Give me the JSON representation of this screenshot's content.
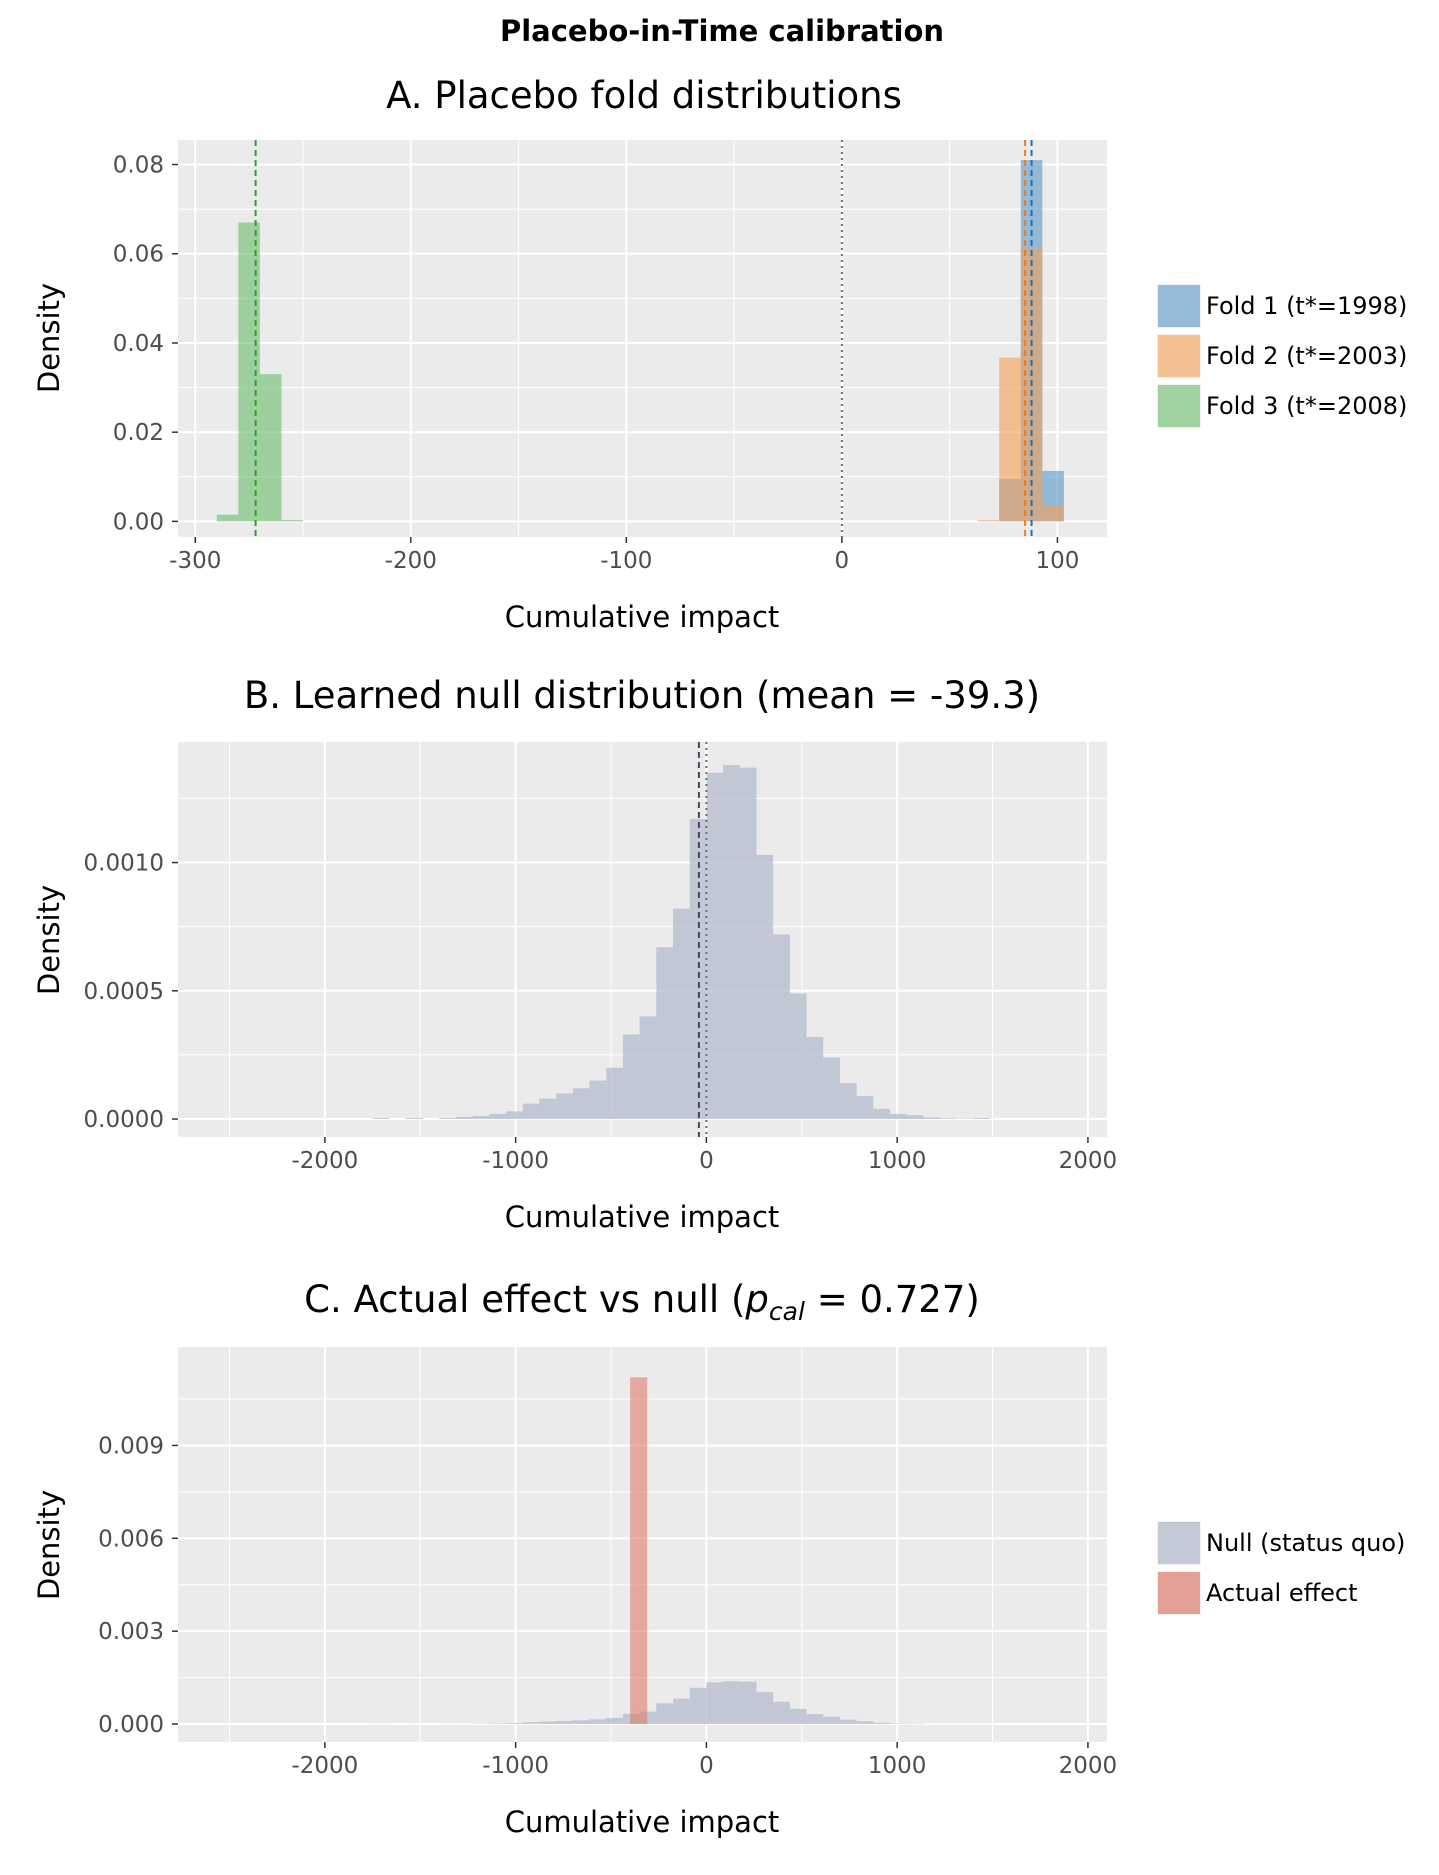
{
  "figure_title": "Placebo-in-Time calibration",
  "chart_data": [
    {
      "id": "A",
      "type": "histogram",
      "title": "A. Placebo fold distributions",
      "xlabel": "Cumulative impact",
      "ylabel": "Density",
      "xlim": [
        -308,
        123
      ],
      "ylim": [
        -0.0035,
        0.0855
      ],
      "x_ticks": [
        -300,
        -200,
        -100,
        0,
        100
      ],
      "y_ticks": [
        0.0,
        0.02,
        0.04,
        0.06,
        0.08
      ],
      "y_tick_labels": [
        "0.00",
        "0.02",
        "0.04",
        "0.06",
        "0.08"
      ],
      "grid": true,
      "legend_position": "right",
      "legend": [
        "Fold 1 (t*=1998)",
        "Fold 2 (t*=2003)",
        "Fold 3 (t*=2008)"
      ],
      "series": [
        {
          "name": "Fold 1 (t*=1998)",
          "color": "#5b9acb",
          "bins": [
            [
              73,
              83,
              0.0095
            ],
            [
              83,
              93,
              0.081
            ],
            [
              93,
              103,
              0.0113
            ]
          ],
          "vline": 88
        },
        {
          "name": "Fold 2 (t*=2003)",
          "color": "#f4a15a",
          "bins": [
            [
              63,
              73,
              0.0003
            ],
            [
              73,
              83,
              0.0367
            ],
            [
              83,
              93,
              0.0612
            ],
            [
              93,
              103,
              0.0035
            ]
          ],
          "vline": 85
        },
        {
          "name": "Fold 3 (t*=2008)",
          "color": "#6cbe6c",
          "bins": [
            [
              -290,
              -280,
              0.0015
            ],
            [
              -280,
              -270,
              0.067
            ],
            [
              -270,
              -260,
              0.033
            ],
            [
              -260,
              -250,
              0.0003
            ]
          ],
          "vline": -272
        }
      ],
      "reference_line": 0
    },
    {
      "id": "B",
      "type": "histogram",
      "title": "B. Learned null distribution (mean = -39.3)",
      "xlabel": "Cumulative impact",
      "ylabel": "Density",
      "xlim": [
        -2770,
        2100
      ],
      "ylim": [
        -7e-05,
        0.00147
      ],
      "x_ticks": [
        -2000,
        -1000,
        0,
        1000,
        2000
      ],
      "y_ticks": [
        0.0,
        0.0005,
        0.001
      ],
      "y_tick_labels": [
        "0.0000",
        "0.0005",
        "0.0010"
      ],
      "grid": true,
      "color": "#b0b9cb",
      "bin_start": -1750,
      "bin_width": 87.5,
      "values": [
        4e-06,
        0.0,
        4e-06,
        0.0,
        4e-06,
        8e-06,
        1.2e-05,
        2e-05,
        3e-05,
        6e-05,
        8e-05,
        0.0001,
        0.00012,
        0.00015,
        0.0002,
        0.00033,
        0.0004,
        0.00067,
        0.00082,
        0.00117,
        0.00135,
        0.00138,
        0.00137,
        0.00103,
        0.00072,
        0.00049,
        0.00032,
        0.00024,
        0.00014,
        9e-05,
        4e-05,
        2e-05,
        1.5e-05,
        6e-06,
        3e-06,
        2e-06,
        4e-06
      ],
      "mean_line": -39.3,
      "reference_line": 0
    },
    {
      "id": "C",
      "type": "histogram",
      "title_prefix": "C. Actual effect vs null (",
      "title_p": "p",
      "title_sub": "cal",
      "title_suffix": " = 0.727)",
      "xlabel": "Cumulative impact",
      "ylabel": "Density",
      "xlim": [
        -2770,
        2100
      ],
      "ylim": [
        -0.00058,
        0.01218
      ],
      "x_ticks": [
        -2000,
        -1000,
        0,
        1000,
        2000
      ],
      "y_ticks": [
        0.0,
        0.003,
        0.006,
        0.009
      ],
      "y_tick_labels": [
        "0.000",
        "0.003",
        "0.006",
        "0.009"
      ],
      "grid": true,
      "legend_position": "right",
      "legend": [
        "Null (status quo)",
        "Actual effect"
      ],
      "series": [
        {
          "name": "Null (status quo)",
          "color": "#b0b9cb",
          "bin_start": -1750,
          "bin_width": 87.5,
          "values": [
            4e-06,
            0.0,
            4e-06,
            0.0,
            4e-06,
            8e-06,
            1.2e-05,
            2e-05,
            3e-05,
            6e-05,
            8e-05,
            0.0001,
            0.00012,
            0.00015,
            0.0002,
            0.00033,
            0.0004,
            0.00067,
            0.00082,
            0.00117,
            0.00135,
            0.00138,
            0.00137,
            0.00103,
            0.00072,
            0.00049,
            0.00032,
            0.00024,
            0.00014,
            9e-05,
            4e-05,
            2e-05,
            1.5e-05,
            6e-06,
            3e-06,
            2e-06,
            4e-06
          ]
        },
        {
          "name": "Actual effect",
          "color": "#df8070",
          "bins": [
            [
              -400,
              -310,
              0.0112
            ]
          ]
        }
      ]
    }
  ]
}
